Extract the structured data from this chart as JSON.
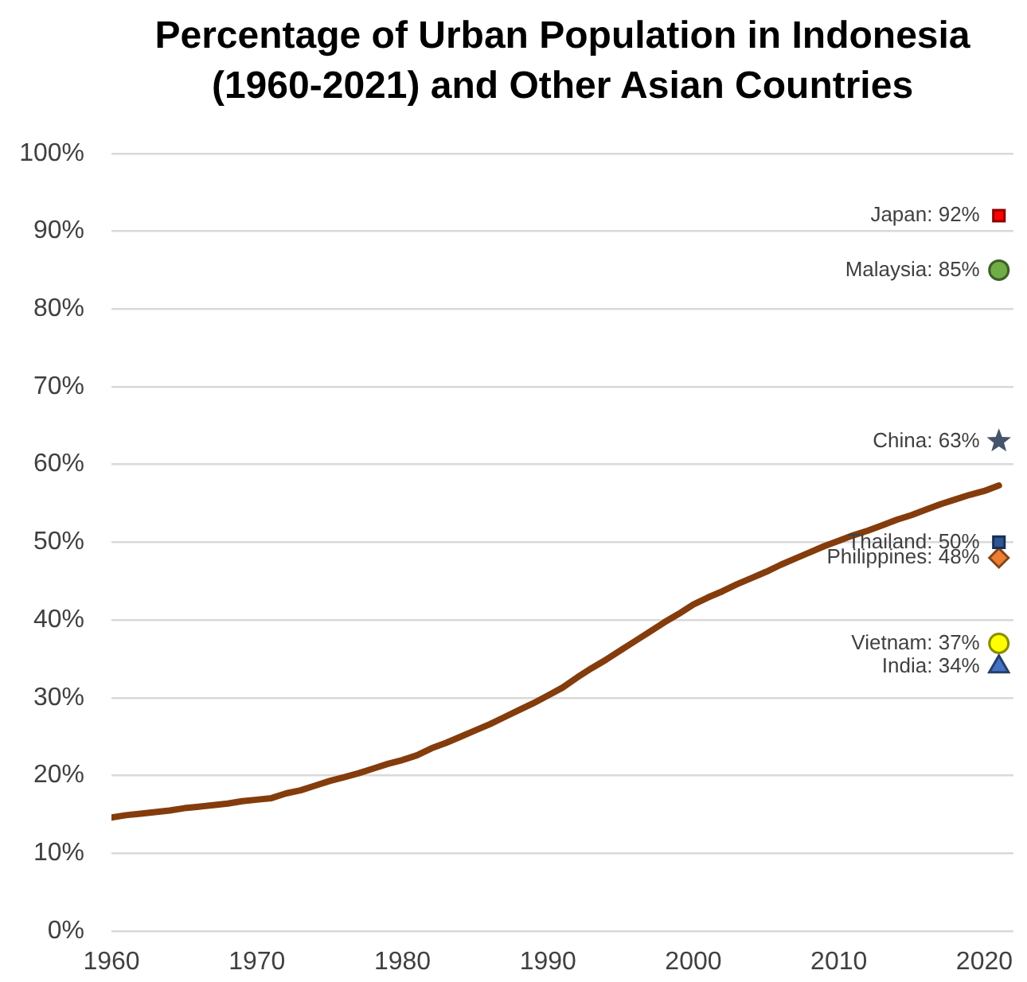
{
  "chart_data": {
    "type": "line",
    "title": "Percentage of Urban Population in Indonesia (1960-2021) and Other Asian Countries",
    "xlim": [
      1960,
      2022
    ],
    "xticks": [
      1960,
      1970,
      1980,
      1990,
      2000,
      2010,
      2020
    ],
    "ylim": [
      0,
      100
    ],
    "yticks": [
      {
        "value": 0,
        "label": "0%"
      },
      {
        "value": 10,
        "label": "10%"
      },
      {
        "value": 20,
        "label": "20%"
      },
      {
        "value": 30,
        "label": "30%"
      },
      {
        "value": 40,
        "label": "40%"
      },
      {
        "value": 50,
        "label": "50%"
      },
      {
        "value": 60,
        "label": "60%"
      },
      {
        "value": 70,
        "label": "70%"
      },
      {
        "value": 80,
        "label": "80%"
      },
      {
        "value": 90,
        "label": "90%"
      },
      {
        "value": 100,
        "label": "100%"
      }
    ],
    "grid": "y",
    "series": [
      {
        "color": "#843c0c",
        "marker": "none",
        "line_style": "solid",
        "x": [
          1960,
          1961,
          1962,
          1963,
          1964,
          1965,
          1966,
          1967,
          1968,
          1969,
          1970,
          1971,
          1972,
          1973,
          1974,
          1975,
          1976,
          1977,
          1978,
          1979,
          1980,
          1981,
          1982,
          1983,
          1984,
          1985,
          1986,
          1987,
          1988,
          1989,
          1990,
          1991,
          1992,
          1993,
          1994,
          1995,
          1996,
          1997,
          1998,
          1999,
          2000,
          2001,
          2002,
          2003,
          2004,
          2005,
          2006,
          2007,
          2008,
          2009,
          2010,
          2011,
          2012,
          2013,
          2014,
          2015,
          2016,
          2017,
          2018,
          2019,
          2020,
          2021
        ],
        "values": [
          14.6,
          14.9,
          15.1,
          15.3,
          15.5,
          15.8,
          16.0,
          16.2,
          16.4,
          16.7,
          16.9,
          17.1,
          17.7,
          18.1,
          18.7,
          19.3,
          19.8,
          20.3,
          20.9,
          21.5,
          22.0,
          22.6,
          23.5,
          24.2,
          25.0,
          25.8,
          26.6,
          27.5,
          28.4,
          29.3,
          30.3,
          31.3,
          32.6,
          33.8,
          34.9,
          36.1,
          37.3,
          38.5,
          39.7,
          40.8,
          42.0,
          42.9,
          43.7,
          44.6,
          45.4,
          46.2,
          47.1,
          47.9,
          48.7,
          49.5,
          50.2,
          50.9,
          51.5,
          52.2,
          52.9,
          53.5,
          54.2,
          54.9,
          55.5,
          56.1,
          56.6,
          57.3
        ]
      },
      {
        "type": "scatter",
        "color": "#ff0000",
        "marker": "square",
        "x": [
          2021
        ],
        "values": [
          92
        ],
        "value_labels": [
          "Japan: 92%"
        ]
      },
      {
        "type": "scatter",
        "color": "#70ad47",
        "marker": "circle",
        "x": [
          2021
        ],
        "values": [
          85
        ],
        "value_labels": [
          "Malaysia: 85%"
        ]
      },
      {
        "type": "scatter",
        "color": "#44546a",
        "marker": "star",
        "x": [
          2021
        ],
        "values": [
          63
        ],
        "value_labels": [
          "China: 63%"
        ]
      },
      {
        "type": "scatter",
        "color": "#2f5597",
        "marker": "square",
        "x": [
          2021
        ],
        "values": [
          50
        ],
        "value_labels": [
          "Thailand: 50%"
        ]
      },
      {
        "type": "scatter",
        "color": "#ed7d31",
        "marker": "diamond",
        "x": [
          2021
        ],
        "values": [
          48
        ],
        "value_labels": [
          "Philippines: 48%"
        ]
      },
      {
        "type": "scatter",
        "color": "#ffff00",
        "marker": "circle",
        "x": [
          2021
        ],
        "values": [
          37
        ],
        "value_labels": [
          "Vietnam: 37%"
        ]
      },
      {
        "type": "scatter",
        "color": "#4472c4",
        "marker": "triangle",
        "x": [
          2021
        ],
        "values": [
          34
        ],
        "value_labels": [
          "India: 34%"
        ]
      }
    ]
  }
}
